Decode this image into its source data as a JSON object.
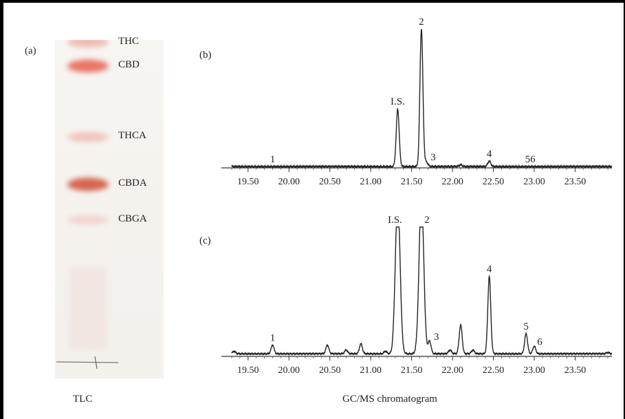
{
  "figure": {
    "panel_labels": [
      "(a)",
      "(b)",
      "(c)"
    ],
    "captions": {
      "tlc": "TLC",
      "gcms": "GC/MS chromatogram"
    }
  },
  "chart_data": [
    {
      "type": "table",
      "panel": "(a)",
      "bands": [
        {
          "label": "THC",
          "rf": 0.54,
          "intensity": 0.35,
          "color": "#e88a80"
        },
        {
          "label": "CBD",
          "rf": 0.5,
          "intensity": 0.85,
          "color": "#e8604f"
        },
        {
          "label": "THCA",
          "rf": 0.38,
          "intensity": 0.3,
          "color": "#ec9a92"
        },
        {
          "label": "CBDA",
          "rf": 0.3,
          "intensity": 0.95,
          "color": "#d35a45"
        },
        {
          "label": "CBGA",
          "rf": 0.24,
          "intensity": 0.2,
          "color": "#eeb3ab"
        }
      ]
    },
    {
      "type": "line",
      "panel": "(b)",
      "xlim": [
        19.3,
        23.95
      ],
      "ylim": [
        0,
        1.0
      ],
      "x_ticks": [
        19.5,
        20.0,
        20.5,
        21.0,
        21.5,
        22.0,
        22.5,
        23.0,
        23.5
      ],
      "x_tick_labels": [
        "19.50",
        "20.00",
        "20.50",
        "21.00",
        "21.50",
        "22.00",
        "22.50",
        "23.00",
        "23.50"
      ],
      "peaks": [
        {
          "label": "1",
          "x": 19.8,
          "height": 0.0
        },
        {
          "label": "I.S.",
          "x": 21.33,
          "height": 0.42
        },
        {
          "label": "2",
          "x": 21.62,
          "height": 1.0
        },
        {
          "label": "3",
          "x": 21.68,
          "height": 0.035
        },
        {
          "label": "",
          "x": 22.1,
          "height": 0.012
        },
        {
          "label": "4",
          "x": 22.45,
          "height": 0.04
        },
        {
          "label": "56",
          "x": 22.95,
          "height": 0.0
        }
      ]
    },
    {
      "type": "line",
      "panel": "(c)",
      "xlim": [
        19.3,
        23.95
      ],
      "ylim": [
        0,
        1.0
      ],
      "x_ticks": [
        19.5,
        20.0,
        20.5,
        21.0,
        21.5,
        22.0,
        22.5,
        23.0,
        23.5
      ],
      "x_tick_labels": [
        "19.50",
        "20.00",
        "20.50",
        "21.00",
        "21.50",
        "22.00",
        "22.50",
        "23.00",
        "23.50"
      ],
      "peaks": [
        {
          "label": "",
          "x": 19.33,
          "height": 0.02
        },
        {
          "label": "1",
          "x": 19.8,
          "height": 0.07
        },
        {
          "label": "",
          "x": 20.47,
          "height": 0.07
        },
        {
          "label": "",
          "x": 20.7,
          "height": 0.03
        },
        {
          "label": "",
          "x": 20.88,
          "height": 0.08
        },
        {
          "label": "",
          "x": 21.18,
          "height": 0.02
        },
        {
          "label": "I.S.",
          "x": 21.33,
          "height": 1.25,
          "clipped": true
        },
        {
          "label": "2",
          "x": 21.62,
          "height": 1.25,
          "clipped": true
        },
        {
          "label": "3",
          "x": 21.72,
          "height": 0.1
        },
        {
          "label": "",
          "x": 21.97,
          "height": 0.03
        },
        {
          "label": "",
          "x": 22.1,
          "height": 0.23
        },
        {
          "label": "",
          "x": 22.25,
          "height": 0.03
        },
        {
          "label": "4",
          "x": 22.45,
          "height": 0.62
        },
        {
          "label": "5",
          "x": 22.9,
          "height": 0.16
        },
        {
          "label": "6",
          "x": 23.0,
          "height": 0.06
        },
        {
          "label": "",
          "x": 23.9,
          "height": 0.01
        }
      ]
    }
  ]
}
